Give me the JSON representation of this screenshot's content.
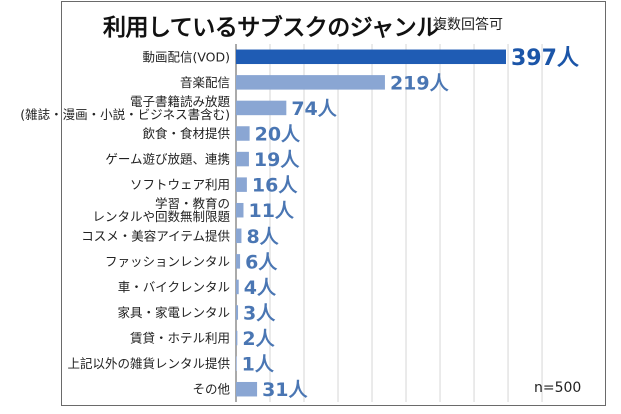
{
  "title": "利用しているサブスクのジャンル",
  "subtitle": "複数回答可",
  "sample_note": "n=500",
  "chart_data": {
    "type": "bar",
    "orientation": "horizontal",
    "categories": [
      [
        "動画配信(VOD)"
      ],
      [
        "音楽配信"
      ],
      [
        "電子書籍読み放題",
        "(雑誌・漫画・小説・ビジネス書含む)"
      ],
      [
        "飲食・食材提供"
      ],
      [
        "ゲーム遊び放題、連携"
      ],
      [
        "ソフトウェア利用"
      ],
      [
        "学習・教育の",
        "レンタルや回数無制限題"
      ],
      [
        "コスメ・美容アイテム提供"
      ],
      [
        "ファッションレンタル"
      ],
      [
        "車・バイクレンタル"
      ],
      [
        "家具・家電レンタル"
      ],
      [
        "賃貸・ホテル利用"
      ],
      [
        "上記以外の雑貨レンタル提供"
      ],
      [
        "その他"
      ]
    ],
    "values": [
      397,
      219,
      74,
      20,
      19,
      16,
      11,
      8,
      6,
      4,
      3,
      2,
      1,
      31
    ],
    "value_labels": [
      "397人",
      "219人",
      "74人",
      "20人",
      "19人",
      "16人",
      "11人",
      "8人",
      "6人",
      "4人",
      "3人",
      "2人",
      "1人",
      "31人"
    ],
    "xlim": [
      0,
      450
    ],
    "grid": true,
    "colors": {
      "highlight": "#1f5cb4",
      "bar": "#8aa6d3",
      "grid": "#d6d6d6",
      "axis": "#555555"
    }
  }
}
